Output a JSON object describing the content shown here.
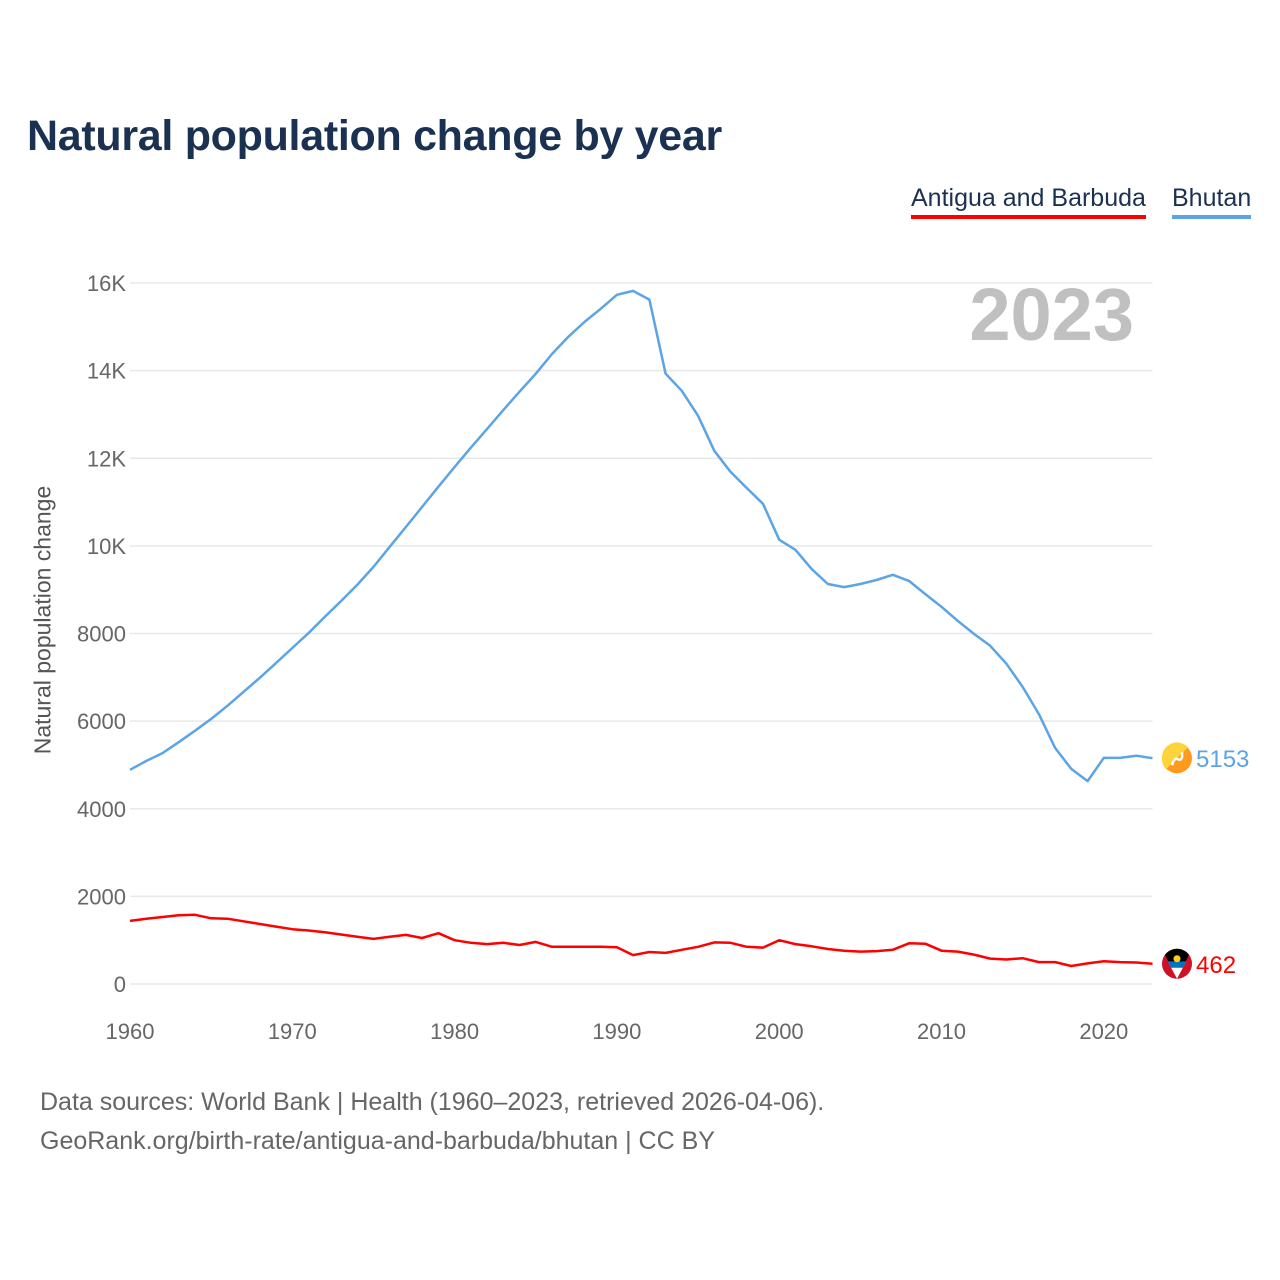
{
  "chart_data": {
    "type": "line",
    "title": "Natural population change by year",
    "ylabel": "Natural population change",
    "xlabel": "",
    "year_watermark": "2023",
    "xlim": [
      1960,
      2023
    ],
    "ylim": [
      0,
      16000
    ],
    "grid": true,
    "legend_position": "top-right",
    "x_ticks": [
      1960,
      1970,
      1980,
      1990,
      2000,
      2010,
      2020
    ],
    "x_tick_labels": [
      "1960",
      "1970",
      "1980",
      "1990",
      "2000",
      "2010",
      "2020"
    ],
    "y_ticks": [
      0,
      2000,
      4000,
      6000,
      8000,
      10000,
      12000,
      14000,
      16000
    ],
    "y_tick_labels": [
      "0",
      "2000",
      "4000",
      "6000",
      "8000",
      "10K",
      "12K",
      "14K",
      "16K"
    ],
    "x_start": 1960,
    "series": [
      {
        "name": "Antigua and Barbuda",
        "color": "#ff0000",
        "end_label": "462",
        "values": [
          1440,
          1490,
          1530,
          1570,
          1580,
          1500,
          1490,
          1430,
          1370,
          1310,
          1250,
          1220,
          1180,
          1130,
          1080,
          1030,
          1080,
          1120,
          1050,
          1160,
          1000,
          940,
          910,
          940,
          890,
          960,
          850,
          850,
          850,
          850,
          840,
          660,
          730,
          710,
          780,
          850,
          950,
          940,
          850,
          830,
          1000,
          910,
          860,
          800,
          760,
          740,
          750,
          780,
          930,
          920,
          760,
          740,
          670,
          580,
          560,
          590,
          500,
          500,
          410,
          470,
          520,
          500,
          490,
          462
        ]
      },
      {
        "name": "Bhutan",
        "color": "#5ba4e6",
        "end_label": "5153",
        "values": [
          4890,
          5090,
          5270,
          5520,
          5780,
          6050,
          6350,
          6670,
          6990,
          7330,
          7670,
          8010,
          8380,
          8740,
          9110,
          9520,
          9980,
          10430,
          10890,
          11350,
          11800,
          12240,
          12670,
          13100,
          13520,
          13930,
          14380,
          14770,
          15110,
          15410,
          15730,
          15820,
          15620,
          13930,
          13540,
          12970,
          12170,
          11690,
          11320,
          10960,
          10140,
          9910,
          9470,
          9130,
          9060,
          9130,
          9220,
          9340,
          9200,
          8900,
          8610,
          8290,
          7990,
          7720,
          7310,
          6780,
          6160,
          5390,
          4910,
          4630,
          5160,
          5160,
          5210,
          5153
        ]
      }
    ]
  },
  "footer": {
    "line1": "Data sources: World Bank | Health (1960–2023, retrieved 2026-04-06).",
    "line2": "GeoRank.org/birth-rate/antigua-and-barbuda/bhutan | CC BY"
  }
}
